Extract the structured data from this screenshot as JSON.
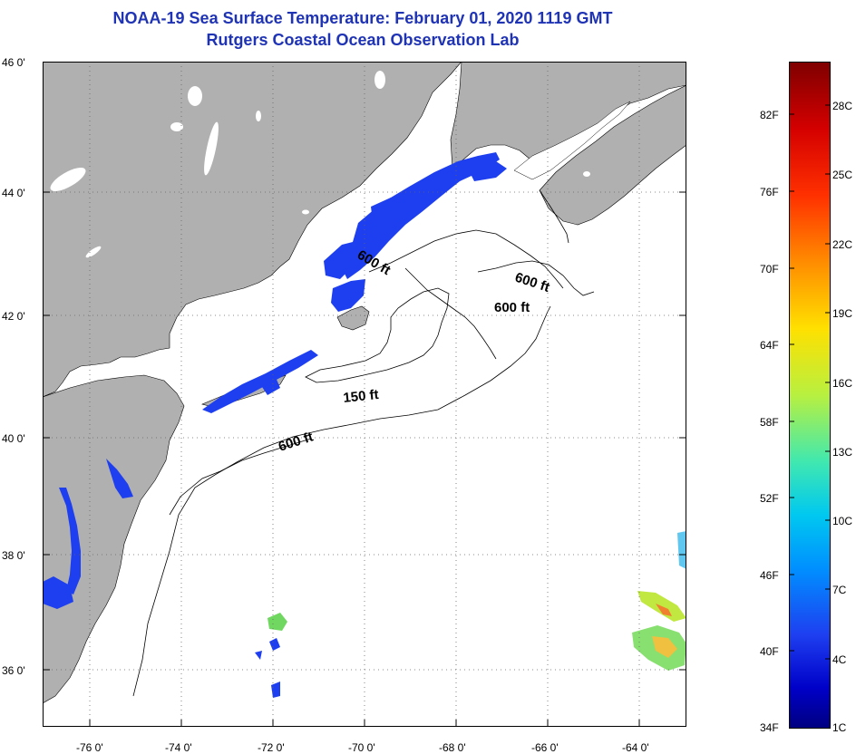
{
  "title": {
    "line1": "NOAA-19 Sea Surface Temperature:  February 01, 2020 1119 GMT",
    "line2": "Rutgers Coastal Ocean Observation Lab"
  },
  "axes": {
    "lat_labels": [
      "46 0'",
      "44 0'",
      "42 0'",
      "40 0'",
      "38 0'",
      "36 0'"
    ],
    "lon_labels": [
      "-76 0'",
      "-74 0'",
      "-72 0'",
      "-70 0'",
      "-68 0'",
      "-66 0'",
      "-64 0'"
    ]
  },
  "contours": {
    "c600a": "600 ft",
    "c600b": "600 ft",
    "c600c": "600 ft",
    "c150": "150 ft",
    "c600d": "600 ft"
  },
  "colorbar": {
    "fahrenheit": [
      "82F",
      "76F",
      "70F",
      "64F",
      "58F",
      "52F",
      "46F",
      "40F",
      "34F"
    ],
    "celsius": [
      "28C",
      "25C",
      "22C",
      "19C",
      "16C",
      "13C",
      "10C",
      "7C",
      "4C",
      "1C"
    ]
  },
  "colors": {
    "land": "#b0b0b0",
    "title": "#1f33b5",
    "cold_water": "#1e3ff0"
  }
}
